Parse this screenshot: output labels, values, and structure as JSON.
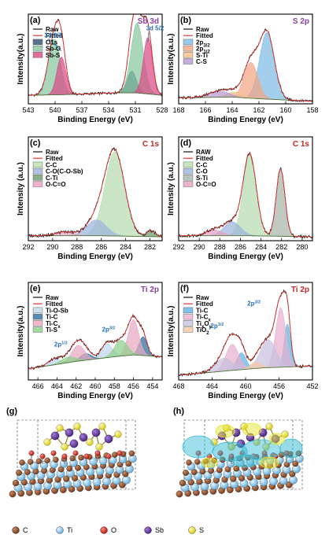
{
  "chart_data": [
    {
      "type": "line",
      "panel": "(a)",
      "core_label": "Sb 3d",
      "core_color": "#8b3fa0",
      "xlabel": "Binding Energy (eV)",
      "ylabel": "Intensity(a.u.)",
      "xlim": [
        543,
        528
      ],
      "xticks": [
        543,
        540,
        537,
        534,
        531,
        528
      ],
      "ylim": [
        0,
        1.05
      ],
      "legend": [
        "Raw",
        "Fitted",
        "O1s",
        "Sb-O",
        "Sb-S"
      ],
      "annotations": [
        "3d 3/2",
        "3d 5/2"
      ],
      "background": [
        [
          543,
          0.1
        ],
        [
          538,
          0.11
        ],
        [
          533,
          0.13
        ],
        [
          531,
          0.13
        ],
        [
          528,
          0.1
        ]
      ],
      "components": [
        {
          "name": "O1s",
          "color": "#2f4f6f",
          "center": 531.4,
          "fwhm": 1.2,
          "height": 0.25
        },
        {
          "name": "Sb-O",
          "color": "#86c7a0",
          "center": 540.1,
          "fwhm": 1.6,
          "height": 0.65
        },
        {
          "name": "Sb-O",
          "color": "#86c7a0",
          "center": 530.8,
          "fwhm": 1.6,
          "height": 0.82
        },
        {
          "name": "Sb-S",
          "color": "#d94b86",
          "center": 539.3,
          "fwhm": 1.2,
          "height": 0.44
        },
        {
          "name": "Sb-S",
          "color": "#d94b86",
          "center": 529.6,
          "fwhm": 1.2,
          "height": 0.66
        }
      ]
    },
    {
      "type": "line",
      "panel": "(b)",
      "core_label": "S 2p",
      "core_color": "#8b3fa0",
      "xlabel": "Binding Energy (eV)",
      "ylabel": "Intensity(a.u.)",
      "xlim": [
        168,
        158
      ],
      "xticks": [
        168,
        166,
        164,
        162,
        160,
        158
      ],
      "ylim": [
        0,
        1.05
      ],
      "legend": [
        "Raw",
        "Fitted",
        "2p3/2",
        "2p1/2",
        "S-Ti",
        "C-S"
      ],
      "background": [
        [
          168,
          0.07
        ],
        [
          164,
          0.08
        ],
        [
          162,
          0.06
        ],
        [
          158,
          0.03
        ]
      ],
      "components": [
        {
          "name": "2p3/2",
          "color": "#7fbde6",
          "center": 161.4,
          "fwhm": 1.3,
          "height": 0.78
        },
        {
          "name": "2p1/2",
          "color": "#f3a585",
          "center": 162.6,
          "fwhm": 1.2,
          "height": 0.42
        },
        {
          "name": "S-Ti",
          "color": "#f5c188",
          "center": 163.8,
          "fwhm": 1.4,
          "height": 0.06
        },
        {
          "name": "C-S",
          "color": "#b59ad0",
          "center": 165.0,
          "fwhm": 1.8,
          "height": 0.07
        }
      ]
    },
    {
      "type": "line",
      "panel": "(c)",
      "core_label": "C 1s",
      "core_color": "#c62828",
      "xlabel": "Binding Energy (eV)",
      "ylabel": "Intensity (a.u.)",
      "xlim": [
        292,
        281
      ],
      "xticks": [
        292,
        290,
        288,
        286,
        284,
        282
      ],
      "ylim": [
        0,
        1.05
      ],
      "legend": [
        "Raw",
        "Fitted",
        "C-C",
        "C-O(C-O-Sb)",
        "C-Ti",
        "O-C=O"
      ],
      "background": [
        [
          292,
          0.05
        ],
        [
          286,
          0.05
        ],
        [
          281,
          0.04
        ]
      ],
      "components": [
        {
          "name": "C-C",
          "color": "#b7ddb0",
          "center": 284.9,
          "fwhm": 1.9,
          "height": 0.85
        },
        {
          "name": "C-O(C-O-Sb)",
          "color": "#9bb4dc",
          "center": 286.4,
          "fwhm": 1.9,
          "height": 0.16
        },
        {
          "name": "C-Ti",
          "color": "#6b9a6b",
          "center": 281.9,
          "fwhm": 0.8,
          "height": 0.06
        },
        {
          "name": "O-C=O",
          "color": "#e6a0c0",
          "center": 289.0,
          "fwhm": 1.8,
          "height": 0.04
        }
      ]
    },
    {
      "type": "line",
      "panel": "(d)",
      "core_label": "C 1s",
      "core_color": "#c62828",
      "xlabel": "Binding Energy (eV)",
      "ylabel": "Intensity (a.u.)",
      "xlim": [
        292,
        279
      ],
      "xticks": [
        292,
        290,
        288,
        286,
        284,
        282,
        280
      ],
      "ylim": [
        0,
        1.05
      ],
      "legend": [
        "RAW",
        "Fitted",
        "C-C",
        "C-O",
        "S-Ti",
        "O-C=O"
      ],
      "background": [
        [
          292,
          0.05
        ],
        [
          285,
          0.05
        ],
        [
          279,
          0.04
        ]
      ],
      "components": [
        {
          "name": "C-C",
          "color": "#b7ddb0",
          "center": 285.1,
          "fwhm": 1.5,
          "height": 0.82
        },
        {
          "name": "C-O",
          "color": "#9bb4dc",
          "center": 286.8,
          "fwhm": 1.9,
          "height": 0.14
        },
        {
          "name": "S-Ti",
          "color": "#a9b6a9",
          "center": 282.1,
          "fwhm": 1.0,
          "height": 0.68
        },
        {
          "name": "O-C=O",
          "color": "#e6a0c0",
          "center": 288.6,
          "fwhm": 1.8,
          "height": 0.06
        }
      ]
    },
    {
      "type": "line",
      "panel": "(e)",
      "core_label": "Ti 2p",
      "core_color": "#8b3fa0",
      "xlabel": "Binding Energy (eV)",
      "ylabel": "Intensity(a.u.)",
      "xlim": [
        467,
        453
      ],
      "xticks": [
        466,
        464,
        462,
        460,
        458,
        456,
        454
      ],
      "ylim": [
        0,
        1.05
      ],
      "legend": [
        "Raw",
        "Fitted",
        "Ti-O-Sb",
        "Ti-C",
        "Ti-Cx",
        "Ti-S"
      ],
      "annotations": [
        "2p1/2",
        "2p3/2"
      ],
      "background": [
        [
          467,
          0.12
        ],
        [
          462,
          0.2
        ],
        [
          458,
          0.25
        ],
        [
          456,
          0.27
        ],
        [
          453,
          0.25
        ]
      ],
      "components": [
        {
          "name": "Ti-O-Sb",
          "color": "#bfd6ee",
          "center": 458.8,
          "fwhm": 1.4,
          "height": 0.15
        },
        {
          "name": "Ti-O-Sb",
          "color": "#bfd6ee",
          "center": 464.3,
          "fwhm": 1.5,
          "height": 0.06
        },
        {
          "name": "Ti-C",
          "color": "#2d6f9a",
          "center": 455.0,
          "fwhm": 1.0,
          "height": 0.2
        },
        {
          "name": "Ti-C",
          "color": "#2d6f9a",
          "center": 461.0,
          "fwhm": 1.4,
          "height": 0.07
        },
        {
          "name": "Ti-Cx",
          "color": "#e8a8c0",
          "center": 456.0,
          "fwhm": 1.3,
          "height": 0.38
        },
        {
          "name": "Ti-Cx",
          "color": "#e8a8c0",
          "center": 461.8,
          "fwhm": 1.6,
          "height": 0.17
        },
        {
          "name": "Ti-S",
          "color": "#8fcf8a",
          "center": 457.3,
          "fwhm": 1.6,
          "height": 0.17
        },
        {
          "name": "Ti-S",
          "color": "#8fcf8a",
          "center": 462.8,
          "fwhm": 1.8,
          "height": 0.06
        }
      ]
    },
    {
      "type": "line",
      "panel": "(f)",
      "core_label": "Ti 2p",
      "core_color": "#c62828",
      "xlabel": "Binding Energy (eV)",
      "ylabel": "Intensity(a.u.)",
      "xlim": [
        468,
        452
      ],
      "xticks": [
        468,
        464,
        460,
        456,
        452
      ],
      "ylim": [
        0,
        1.05
      ],
      "legend": [
        "Raw",
        "Fitted",
        "Ti-C",
        "Ti-Cx",
        "TixOy",
        "TiO2"
      ],
      "annotations": [
        "2p1/2",
        "2p3/2"
      ],
      "background": [
        [
          468,
          0.05
        ],
        [
          462,
          0.1
        ],
        [
          458,
          0.13
        ],
        [
          452,
          0.15
        ]
      ],
      "components": [
        {
          "name": "Ti-C",
          "color": "#5fb3e0",
          "center": 455.0,
          "fwhm": 0.9,
          "height": 0.46
        },
        {
          "name": "Ti-C",
          "color": "#5fb3e0",
          "center": 460.5,
          "fwhm": 1.3,
          "height": 0.18
        },
        {
          "name": "Ti-Cx",
          "color": "#e8b0cf",
          "center": 455.8,
          "fwhm": 1.4,
          "height": 0.64
        },
        {
          "name": "Ti-Cx",
          "color": "#e8b0cf",
          "center": 461.6,
          "fwhm": 1.8,
          "height": 0.28
        },
        {
          "name": "TixOy",
          "color": "#c8c0de",
          "center": 457.3,
          "fwhm": 2.2,
          "height": 0.3
        },
        {
          "name": "TixOy",
          "color": "#c8c0de",
          "center": 462.6,
          "fwhm": 2.4,
          "height": 0.14
        },
        {
          "name": "TiO2",
          "color": "#f4c9a8",
          "center": 458.8,
          "fwhm": 1.5,
          "height": 0.07
        }
      ]
    }
  ],
  "structures": {
    "g_label": "(g)",
    "h_label": "(h)",
    "legend": [
      {
        "symbol": "C",
        "color": "#8b4a2b"
      },
      {
        "symbol": "Ti",
        "color": "#8ccaea"
      },
      {
        "symbol": "O",
        "color": "#e0241c"
      },
      {
        "symbol": "Sb",
        "color": "#6a3ba8"
      },
      {
        "symbol": "S",
        "color": "#f2e612"
      }
    ]
  }
}
